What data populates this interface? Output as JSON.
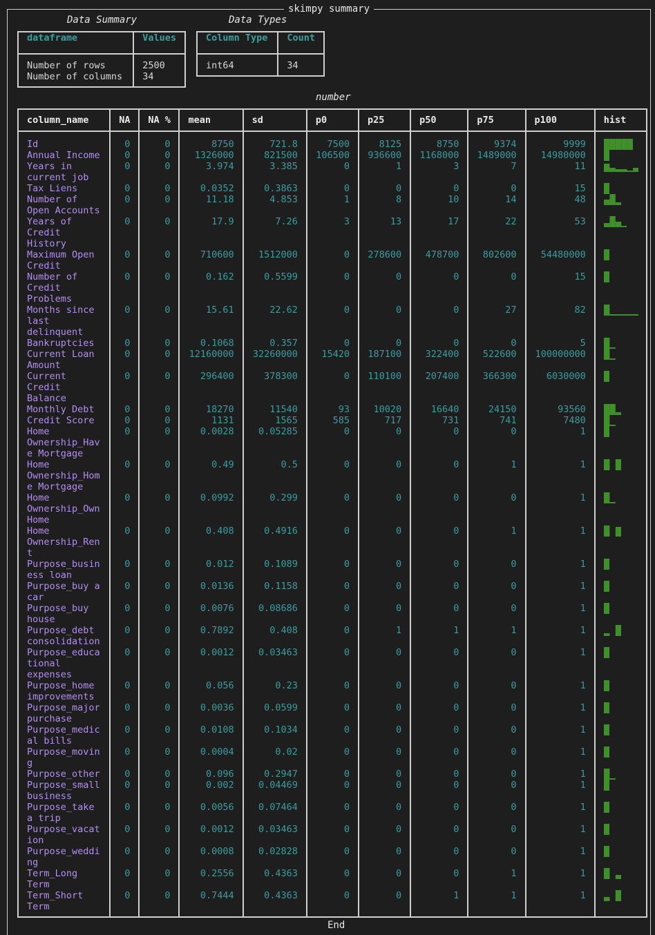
{
  "title": "skimpy summary",
  "data_summary": {
    "caption": "Data Summary",
    "headers": [
      "dataframe",
      "Values"
    ],
    "labels": "Number of rows\nNumber of columns",
    "values": "2500\n34"
  },
  "data_types": {
    "caption": "Data Types",
    "headers": [
      "Column Type",
      "Count"
    ],
    "rows": [
      [
        "int64",
        "34"
      ]
    ]
  },
  "number_caption": "number",
  "number_table": {
    "headers": [
      "column_name",
      "NA",
      "NA %",
      "mean",
      "sd",
      "p0",
      "p25",
      "p50",
      "p75",
      "p100",
      "hist"
    ],
    "rows": [
      {
        "name": "Id",
        "na": "0",
        "pct": "0",
        "mean": "8750",
        "sd": "721.8",
        "p0": "7500",
        "p25": "8125",
        "p50": "8750",
        "p75": "9374",
        "p100": "9999",
        "hist": "█████"
      },
      {
        "name": "Annual Income",
        "na": "0",
        "pct": "0",
        "mean": "1326000",
        "sd": "821500",
        "p0": "106500",
        "p25": "936600",
        "p50": "1168000",
        "p75": "1489000",
        "p100": "14980000",
        "hist": "█"
      },
      {
        "name": "Years in\ncurrent job",
        "na": "0",
        "pct": "0",
        "mean": "3.974",
        "sd": "3.385",
        "p0": "0",
        "p25": "1",
        "p50": "3",
        "p75": "7",
        "p100": "11",
        "hist": "▆▃▂▂▁▃"
      },
      {
        "name": "Tax Liens",
        "na": "0",
        "pct": "0",
        "mean": "0.0352",
        "sd": "0.3863",
        "p0": "0",
        "p25": "0",
        "p50": "0",
        "p75": "0",
        "p100": "15",
        "hist": "█"
      },
      {
        "name": "Number of\nOpen Accounts",
        "na": "0",
        "pct": "0",
        "mean": "11.18",
        "sd": "4.853",
        "p0": "1",
        "p25": "8",
        "p50": "10",
        "p75": "14",
        "p100": "48",
        "hist": "▄█▂"
      },
      {
        "name": "Years of\nCredit\nHistory",
        "na": "0",
        "pct": "0",
        "mean": "17.9",
        "sd": "7.26",
        "p0": "3",
        "p25": "13",
        "p50": "17",
        "p75": "22",
        "p100": "53",
        "hist": "▃█▄▁"
      },
      {
        "name": "Maximum Open\nCredit",
        "na": "0",
        "pct": "0",
        "mean": "710600",
        "sd": "1512000",
        "p0": "0",
        "p25": "278600",
        "p50": "478700",
        "p75": "802600",
        "p100": "54480000",
        "hist": "█"
      },
      {
        "name": "Number of\nCredit\nProblems",
        "na": "0",
        "pct": "0",
        "mean": "0.162",
        "sd": "0.5599",
        "p0": "0",
        "p25": "0",
        "p50": "0",
        "p75": "0",
        "p100": "15",
        "hist": "█"
      },
      {
        "name": "Months since\nlast\ndelinquent",
        "na": "0",
        "pct": "0",
        "mean": "15.61",
        "sd": "22.62",
        "p0": "0",
        "p25": "0",
        "p50": "0",
        "p75": "27",
        "p100": "82",
        "hist": "█▁▁▁▁▁"
      },
      {
        "name": "Bankruptcies",
        "na": "0",
        "pct": "0",
        "mean": "0.1068",
        "sd": "0.357",
        "p0": "0",
        "p25": "0",
        "p50": "0",
        "p75": "0",
        "p100": "5",
        "hist": "█▁"
      },
      {
        "name": "Current Loan\nAmount",
        "na": "0",
        "pct": "0",
        "mean": "12160000",
        "sd": "32260000",
        "p0": "15420",
        "p25": "187100",
        "p50": "322400",
        "p75": "522600",
        "p100": "100000000",
        "hist": "█▁"
      },
      {
        "name": "Current\nCredit\nBalance",
        "na": "0",
        "pct": "0",
        "mean": "296400",
        "sd": "378300",
        "p0": "0",
        "p25": "110100",
        "p50": "207400",
        "p75": "366300",
        "p100": "6030000",
        "hist": "█"
      },
      {
        "name": "Monthly Debt",
        "na": "0",
        "pct": "0",
        "mean": "18270",
        "sd": "11540",
        "p0": "93",
        "p25": "10020",
        "p50": "16640",
        "p75": "24150",
        "p100": "93560",
        "hist": "██▂"
      },
      {
        "name": "Credit Score",
        "na": "0",
        "pct": "0",
        "mean": "1131",
        "sd": "1565",
        "p0": "585",
        "p25": "717",
        "p50": "731",
        "p75": "741",
        "p100": "7480",
        "hist": "█▁"
      },
      {
        "name": "Home\nOwnership_Hav\ne Mortgage",
        "na": "0",
        "pct": "0",
        "mean": "0.0028",
        "sd": "0.05285",
        "p0": "0",
        "p25": "0",
        "p50": "0",
        "p75": "0",
        "p100": "1",
        "hist": "█"
      },
      {
        "name": "Home\nOwnership_Hom\ne Mortgage",
        "na": "0",
        "pct": "0",
        "mean": "0.49",
        "sd": "0.5",
        "p0": "0",
        "p25": "0",
        "p50": "0",
        "p75": "1",
        "p100": "1",
        "hist": "█ █"
      },
      {
        "name": "Home\nOwnership_Own\nHome",
        "na": "0",
        "pct": "0",
        "mean": "0.0992",
        "sd": "0.299",
        "p0": "0",
        "p25": "0",
        "p50": "0",
        "p75": "0",
        "p100": "1",
        "hist": "█▁"
      },
      {
        "name": "Home\nOwnership_Ren\nt",
        "na": "0",
        "pct": "0",
        "mean": "0.408",
        "sd": "0.4916",
        "p0": "0",
        "p25": "0",
        "p50": "0",
        "p75": "1",
        "p100": "1",
        "hist": "█ ▇"
      },
      {
        "name": "Purpose_busin\ness loan",
        "na": "0",
        "pct": "0",
        "mean": "0.012",
        "sd": "0.1089",
        "p0": "0",
        "p25": "0",
        "p50": "0",
        "p75": "0",
        "p100": "1",
        "hist": "█"
      },
      {
        "name": "Purpose_buy a\ncar",
        "na": "0",
        "pct": "0",
        "mean": "0.0136",
        "sd": "0.1158",
        "p0": "0",
        "p25": "0",
        "p50": "0",
        "p75": "0",
        "p100": "1",
        "hist": "█"
      },
      {
        "name": "Purpose_buy\nhouse",
        "na": "0",
        "pct": "0",
        "mean": "0.0076",
        "sd": "0.08686",
        "p0": "0",
        "p25": "0",
        "p50": "0",
        "p75": "0",
        "p100": "1",
        "hist": "█"
      },
      {
        "name": "Purpose_debt\nconsolidation",
        "na": "0",
        "pct": "0",
        "mean": "0.7892",
        "sd": "0.408",
        "p0": "0",
        "p25": "1",
        "p50": "1",
        "p75": "1",
        "p100": "1",
        "hist": "▂ █"
      },
      {
        "name": "Purpose_educa\ntional\nexpenses",
        "na": "0",
        "pct": "0",
        "mean": "0.0012",
        "sd": "0.03463",
        "p0": "0",
        "p25": "0",
        "p50": "0",
        "p75": "0",
        "p100": "1",
        "hist": "█"
      },
      {
        "name": "Purpose_home\nimprovements",
        "na": "0",
        "pct": "0",
        "mean": "0.056",
        "sd": "0.23",
        "p0": "0",
        "p25": "0",
        "p50": "0",
        "p75": "0",
        "p100": "1",
        "hist": "█"
      },
      {
        "name": "Purpose_major\npurchase",
        "na": "0",
        "pct": "0",
        "mean": "0.0036",
        "sd": "0.0599",
        "p0": "0",
        "p25": "0",
        "p50": "0",
        "p75": "0",
        "p100": "1",
        "hist": "█"
      },
      {
        "name": "Purpose_medic\nal bills",
        "na": "0",
        "pct": "0",
        "mean": "0.0108",
        "sd": "0.1034",
        "p0": "0",
        "p25": "0",
        "p50": "0",
        "p75": "0",
        "p100": "1",
        "hist": "█"
      },
      {
        "name": "Purpose_movin\ng",
        "na": "0",
        "pct": "0",
        "mean": "0.0004",
        "sd": "0.02",
        "p0": "0",
        "p25": "0",
        "p50": "0",
        "p75": "0",
        "p100": "1",
        "hist": "█"
      },
      {
        "name": "Purpose_other",
        "na": "0",
        "pct": "0",
        "mean": "0.096",
        "sd": "0.2947",
        "p0": "0",
        "p25": "0",
        "p50": "0",
        "p75": "0",
        "p100": "1",
        "hist": "█▁"
      },
      {
        "name": "Purpose_small\nbusiness",
        "na": "0",
        "pct": "0",
        "mean": "0.002",
        "sd": "0.04469",
        "p0": "0",
        "p25": "0",
        "p50": "0",
        "p75": "0",
        "p100": "1",
        "hist": "█"
      },
      {
        "name": "Purpose_take\na trip",
        "na": "0",
        "pct": "0",
        "mean": "0.0056",
        "sd": "0.07464",
        "p0": "0",
        "p25": "0",
        "p50": "0",
        "p75": "0",
        "p100": "1",
        "hist": "█"
      },
      {
        "name": "Purpose_vacat\nion",
        "na": "0",
        "pct": "0",
        "mean": "0.0012",
        "sd": "0.03463",
        "p0": "0",
        "p25": "0",
        "p50": "0",
        "p75": "0",
        "p100": "1",
        "hist": "█"
      },
      {
        "name": "Purpose_weddi\nng",
        "na": "0",
        "pct": "0",
        "mean": "0.0008",
        "sd": "0.02828",
        "p0": "0",
        "p25": "0",
        "p50": "0",
        "p75": "0",
        "p100": "1",
        "hist": "█"
      },
      {
        "name": "Term_Long\nTerm",
        "na": "0",
        "pct": "0",
        "mean": "0.2556",
        "sd": "0.4363",
        "p0": "0",
        "p25": "0",
        "p50": "0",
        "p75": "1",
        "p100": "1",
        "hist": "█ ▃"
      },
      {
        "name": "Term_Short\nTerm",
        "na": "0",
        "pct": "0",
        "mean": "0.7444",
        "sd": "0.4363",
        "p0": "0",
        "p25": "0",
        "p50": "1",
        "p75": "1",
        "p100": "1",
        "hist": "▃ █"
      }
    ]
  },
  "end_label": "End",
  "colors": {
    "background": "#1e1e1e",
    "border": "#cfcfcf",
    "header_teal": "#3d9e9e",
    "column_name_purple": "#b48ef2",
    "number_teal": "#3a9da0",
    "hist_green": "#3f8f2a"
  }
}
